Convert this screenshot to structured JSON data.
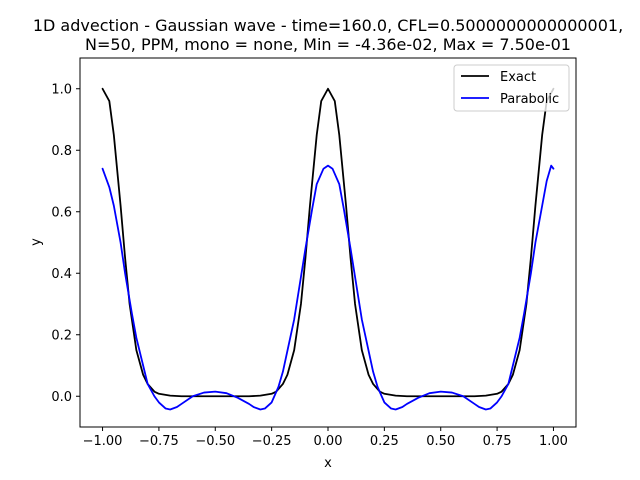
{
  "chart_data": {
    "type": "line",
    "title_line1": "1D advection - Gaussian wave - time=160.0, CFL=0.5000000000000001,",
    "title_line2": "N=50, PPM, mono = none, Min = -4.36e-02, Max = 7.50e-01",
    "xlabel": "x",
    "ylabel": "y",
    "xlim": [
      -1.1,
      1.1
    ],
    "ylim": [
      -0.1,
      1.1
    ],
    "xticks": [
      -1.0,
      -0.75,
      -0.5,
      -0.25,
      0.0,
      0.25,
      0.5,
      0.75,
      1.0
    ],
    "xtick_labels": [
      "−1.00",
      "−0.75",
      "−0.50",
      "−0.25",
      "0.00",
      "0.25",
      "0.50",
      "0.75",
      "1.00"
    ],
    "yticks": [
      0.0,
      0.2,
      0.4,
      0.6,
      0.8,
      1.0
    ],
    "ytick_labels": [
      "0.0",
      "0.2",
      "0.4",
      "0.6",
      "0.8",
      "1.0"
    ],
    "grid": false,
    "legend_position": "top-right",
    "series": [
      {
        "name": "Exact",
        "color": "#000000",
        "x": [
          -1.0,
          -0.97,
          -0.95,
          -0.92,
          -0.9,
          -0.88,
          -0.85,
          -0.82,
          -0.8,
          -0.77,
          -0.75,
          -0.7,
          -0.65,
          -0.6,
          -0.5,
          -0.4,
          -0.35,
          -0.3,
          -0.25,
          -0.23,
          -0.2,
          -0.18,
          -0.15,
          -0.12,
          -0.1,
          -0.08,
          -0.05,
          -0.03,
          0.0,
          0.03,
          0.05,
          0.08,
          0.1,
          0.12,
          0.15,
          0.18,
          0.2,
          0.23,
          0.25,
          0.3,
          0.35,
          0.4,
          0.5,
          0.6,
          0.65,
          0.7,
          0.75,
          0.77,
          0.8,
          0.82,
          0.85,
          0.88,
          0.9,
          0.92,
          0.95,
          0.97,
          1.0
        ],
        "y": [
          1.0,
          0.96,
          0.85,
          0.62,
          0.45,
          0.3,
          0.15,
          0.07,
          0.04,
          0.015,
          0.008,
          0.002,
          0.0,
          0.0,
          0.0,
          0.0,
          0.0,
          0.002,
          0.008,
          0.015,
          0.04,
          0.07,
          0.15,
          0.3,
          0.45,
          0.62,
          0.85,
          0.96,
          1.0,
          0.96,
          0.85,
          0.62,
          0.45,
          0.3,
          0.15,
          0.07,
          0.04,
          0.015,
          0.008,
          0.002,
          0.0,
          0.0,
          0.0,
          0.0,
          0.0,
          0.002,
          0.008,
          0.015,
          0.04,
          0.07,
          0.15,
          0.3,
          0.45,
          0.62,
          0.85,
          0.96,
          1.0
        ]
      },
      {
        "name": "Parabolic",
        "color": "#0000ff",
        "x": [
          -1.0,
          -0.97,
          -0.95,
          -0.92,
          -0.9,
          -0.87,
          -0.85,
          -0.82,
          -0.8,
          -0.77,
          -0.75,
          -0.72,
          -0.7,
          -0.67,
          -0.65,
          -0.6,
          -0.55,
          -0.5,
          -0.45,
          -0.4,
          -0.35,
          -0.33,
          -0.3,
          -0.28,
          -0.25,
          -0.22,
          -0.2,
          -0.15,
          -0.1,
          -0.07,
          -0.05,
          -0.02,
          0.0,
          0.02,
          0.05,
          0.07,
          0.1,
          0.15,
          0.2,
          0.22,
          0.25,
          0.28,
          0.3,
          0.33,
          0.35,
          0.4,
          0.45,
          0.5,
          0.55,
          0.6,
          0.65,
          0.67,
          0.7,
          0.72,
          0.75,
          0.77,
          0.8,
          0.82,
          0.85,
          0.87,
          0.9,
          0.92,
          0.95,
          0.97,
          0.99,
          1.0
        ],
        "y": [
          0.74,
          0.68,
          0.62,
          0.5,
          0.4,
          0.27,
          0.19,
          0.1,
          0.04,
          0.0,
          -0.02,
          -0.04,
          -0.043,
          -0.035,
          -0.025,
          0.0,
          0.012,
          0.015,
          0.01,
          -0.005,
          -0.025,
          -0.035,
          -0.043,
          -0.04,
          -0.02,
          0.03,
          0.08,
          0.25,
          0.48,
          0.61,
          0.69,
          0.74,
          0.75,
          0.74,
          0.69,
          0.61,
          0.48,
          0.25,
          0.08,
          0.03,
          -0.02,
          -0.04,
          -0.043,
          -0.035,
          -0.025,
          -0.005,
          0.01,
          0.015,
          0.012,
          0.0,
          -0.025,
          -0.035,
          -0.043,
          -0.04,
          -0.02,
          0.0,
          0.04,
          0.1,
          0.19,
          0.27,
          0.4,
          0.5,
          0.62,
          0.7,
          0.75,
          0.74
        ]
      }
    ]
  }
}
